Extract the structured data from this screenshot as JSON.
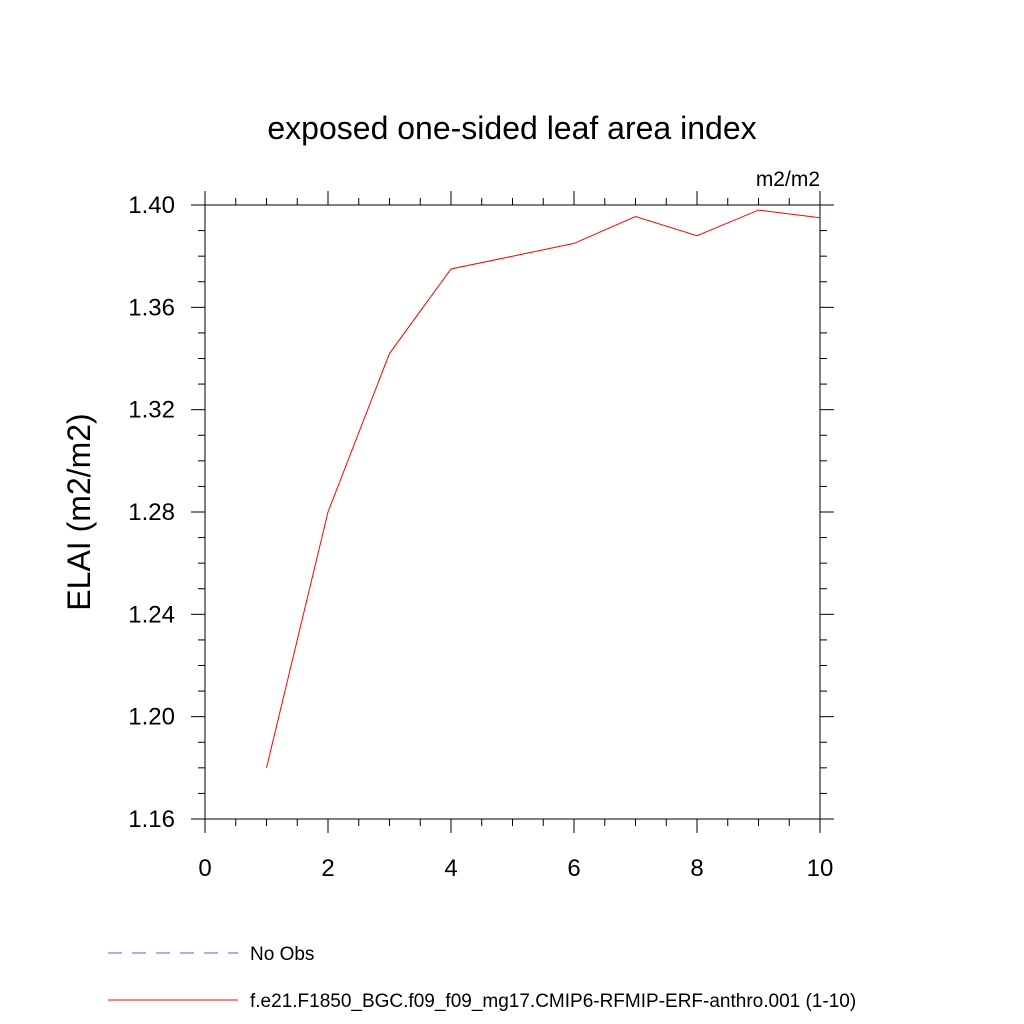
{
  "chart_data": {
    "type": "line",
    "title": "exposed one-sided leaf area index",
    "units_label": "m2/m2",
    "ylabel": "ELAI  (m2/m2)",
    "xlabel": "",
    "xlim": [
      0,
      10
    ],
    "ylim": [
      1.16,
      1.4
    ],
    "x_ticks": [
      0,
      2,
      4,
      6,
      8,
      10
    ],
    "x_tick_labels": [
      "0",
      "2",
      "4",
      "6",
      "8",
      "10"
    ],
    "y_ticks": [
      1.16,
      1.2,
      1.24,
      1.28,
      1.32,
      1.36,
      1.4
    ],
    "y_tick_labels": [
      "1.16",
      "1.20",
      "1.24",
      "1.28",
      "1.32",
      "1.36",
      "1.40"
    ],
    "grid": false,
    "legend_position": "bottom-left",
    "series": [
      {
        "name": "f.e21.F1850_BGC.f09_f09_mg17.CMIP6-RFMIP-ERF-anthro.001 (1-10)",
        "color": "#ff0000",
        "style": "solid",
        "x": [
          1,
          2,
          3,
          4,
          5,
          6,
          7,
          8,
          9,
          10
        ],
        "y": [
          1.18,
          1.28,
          1.342,
          1.375,
          1.38,
          1.385,
          1.3955,
          1.388,
          1.398,
          1.395
        ]
      }
    ],
    "legend": [
      {
        "label": "No Obs",
        "color": "#6a5acd",
        "style": "dashed"
      },
      {
        "label": "f.e21.F1850_BGC.f09_f09_mg17.CMIP6-RFMIP-ERF-anthro.001 (1-10)",
        "color": "#ff0000",
        "style": "solid"
      }
    ]
  }
}
